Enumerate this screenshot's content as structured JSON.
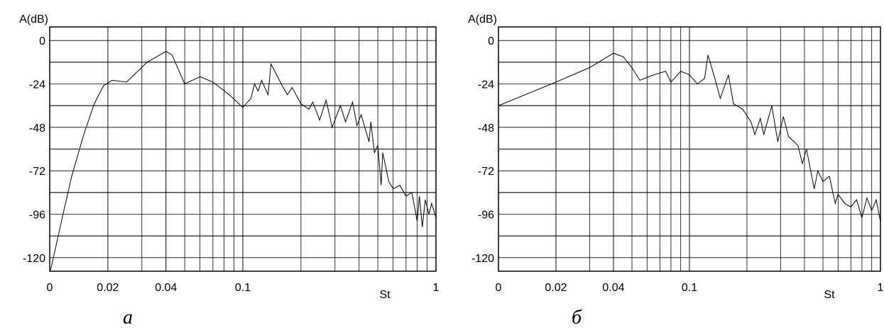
{
  "chart_data": [
    {
      "type": "line",
      "caption": "а",
      "xlabel": "St",
      "ylabel": "A(dB)",
      "color": "#000000",
      "xscale": "log",
      "grid": true,
      "xlim": [
        0.01,
        1
      ],
      "xticks": [
        {
          "value": 0.01,
          "label": "0"
        },
        0.02,
        0.04,
        0.1,
        1
      ],
      "ylim": [
        -127.5,
        7.5
      ],
      "yticks": [
        0,
        -24,
        -48,
        -72,
        -96,
        -120
      ],
      "x": [
        0.0101,
        0.0115,
        0.013,
        0.015,
        0.017,
        0.019,
        0.021,
        0.025,
        0.032,
        0.04,
        0.043,
        0.05,
        0.06,
        0.07,
        0.085,
        0.1,
        0.11,
        0.115,
        0.12,
        0.125,
        0.135,
        0.14,
        0.16,
        0.17,
        0.18,
        0.2,
        0.22,
        0.23,
        0.25,
        0.27,
        0.29,
        0.32,
        0.34,
        0.37,
        0.39,
        0.41,
        0.45,
        0.46,
        0.48,
        0.5,
        0.52,
        0.53,
        0.57,
        0.6,
        0.65,
        0.7,
        0.75,
        0.8,
        0.82,
        0.85,
        0.88,
        0.92,
        0.95,
        1
      ],
      "values": [
        -127,
        -100,
        -75,
        -52,
        -35,
        -25,
        -22,
        -23,
        -12,
        -6,
        -8,
        -24,
        -20,
        -23,
        -30,
        -37,
        -32,
        -24,
        -28,
        -22,
        -30,
        -13,
        -25,
        -30,
        -26,
        -35,
        -38,
        -34,
        -44,
        -33,
        -48,
        -36,
        -45,
        -34,
        -47,
        -41,
        -56,
        -45,
        -62,
        -58,
        -80,
        -62,
        -78,
        -82,
        -80,
        -86,
        -84,
        -100,
        -86,
        -103,
        -88,
        -96,
        -90,
        -98
      ]
    },
    {
      "type": "line",
      "caption": "б",
      "xlabel": "St",
      "ylabel": "A(dB)",
      "color": "#000000",
      "xscale": "log",
      "grid": true,
      "xlim": [
        0.01,
        1
      ],
      "xticks": [
        {
          "value": 0.01,
          "label": "0"
        },
        0.02,
        0.04,
        0.1,
        1
      ],
      "ylim": [
        -127.5,
        7.5
      ],
      "yticks": [
        0,
        -24,
        -48,
        -72,
        -96,
        -120
      ],
      "x": [
        0.01,
        0.02,
        0.03,
        0.04,
        0.045,
        0.05,
        0.055,
        0.065,
        0.075,
        0.08,
        0.09,
        0.1,
        0.11,
        0.12,
        0.125,
        0.135,
        0.145,
        0.16,
        0.17,
        0.19,
        0.21,
        0.22,
        0.235,
        0.245,
        0.27,
        0.29,
        0.31,
        0.33,
        0.37,
        0.39,
        0.41,
        0.45,
        0.47,
        0.5,
        0.54,
        0.58,
        0.6,
        0.65,
        0.7,
        0.75,
        0.8,
        0.85,
        0.9,
        0.95,
        1
      ],
      "values": [
        -36,
        -23,
        -15,
        -7,
        -9,
        -15,
        -22,
        -19,
        -17,
        -23,
        -17,
        -19,
        -24,
        -21,
        -8,
        -20,
        -32,
        -19,
        -35,
        -38,
        -45,
        -52,
        -43,
        -52,
        -36,
        -56,
        -42,
        -53,
        -58,
        -68,
        -60,
        -82,
        -72,
        -78,
        -75,
        -90,
        -85,
        -90,
        -92,
        -88,
        -98,
        -87,
        -94,
        -88,
        -100
      ]
    }
  ]
}
